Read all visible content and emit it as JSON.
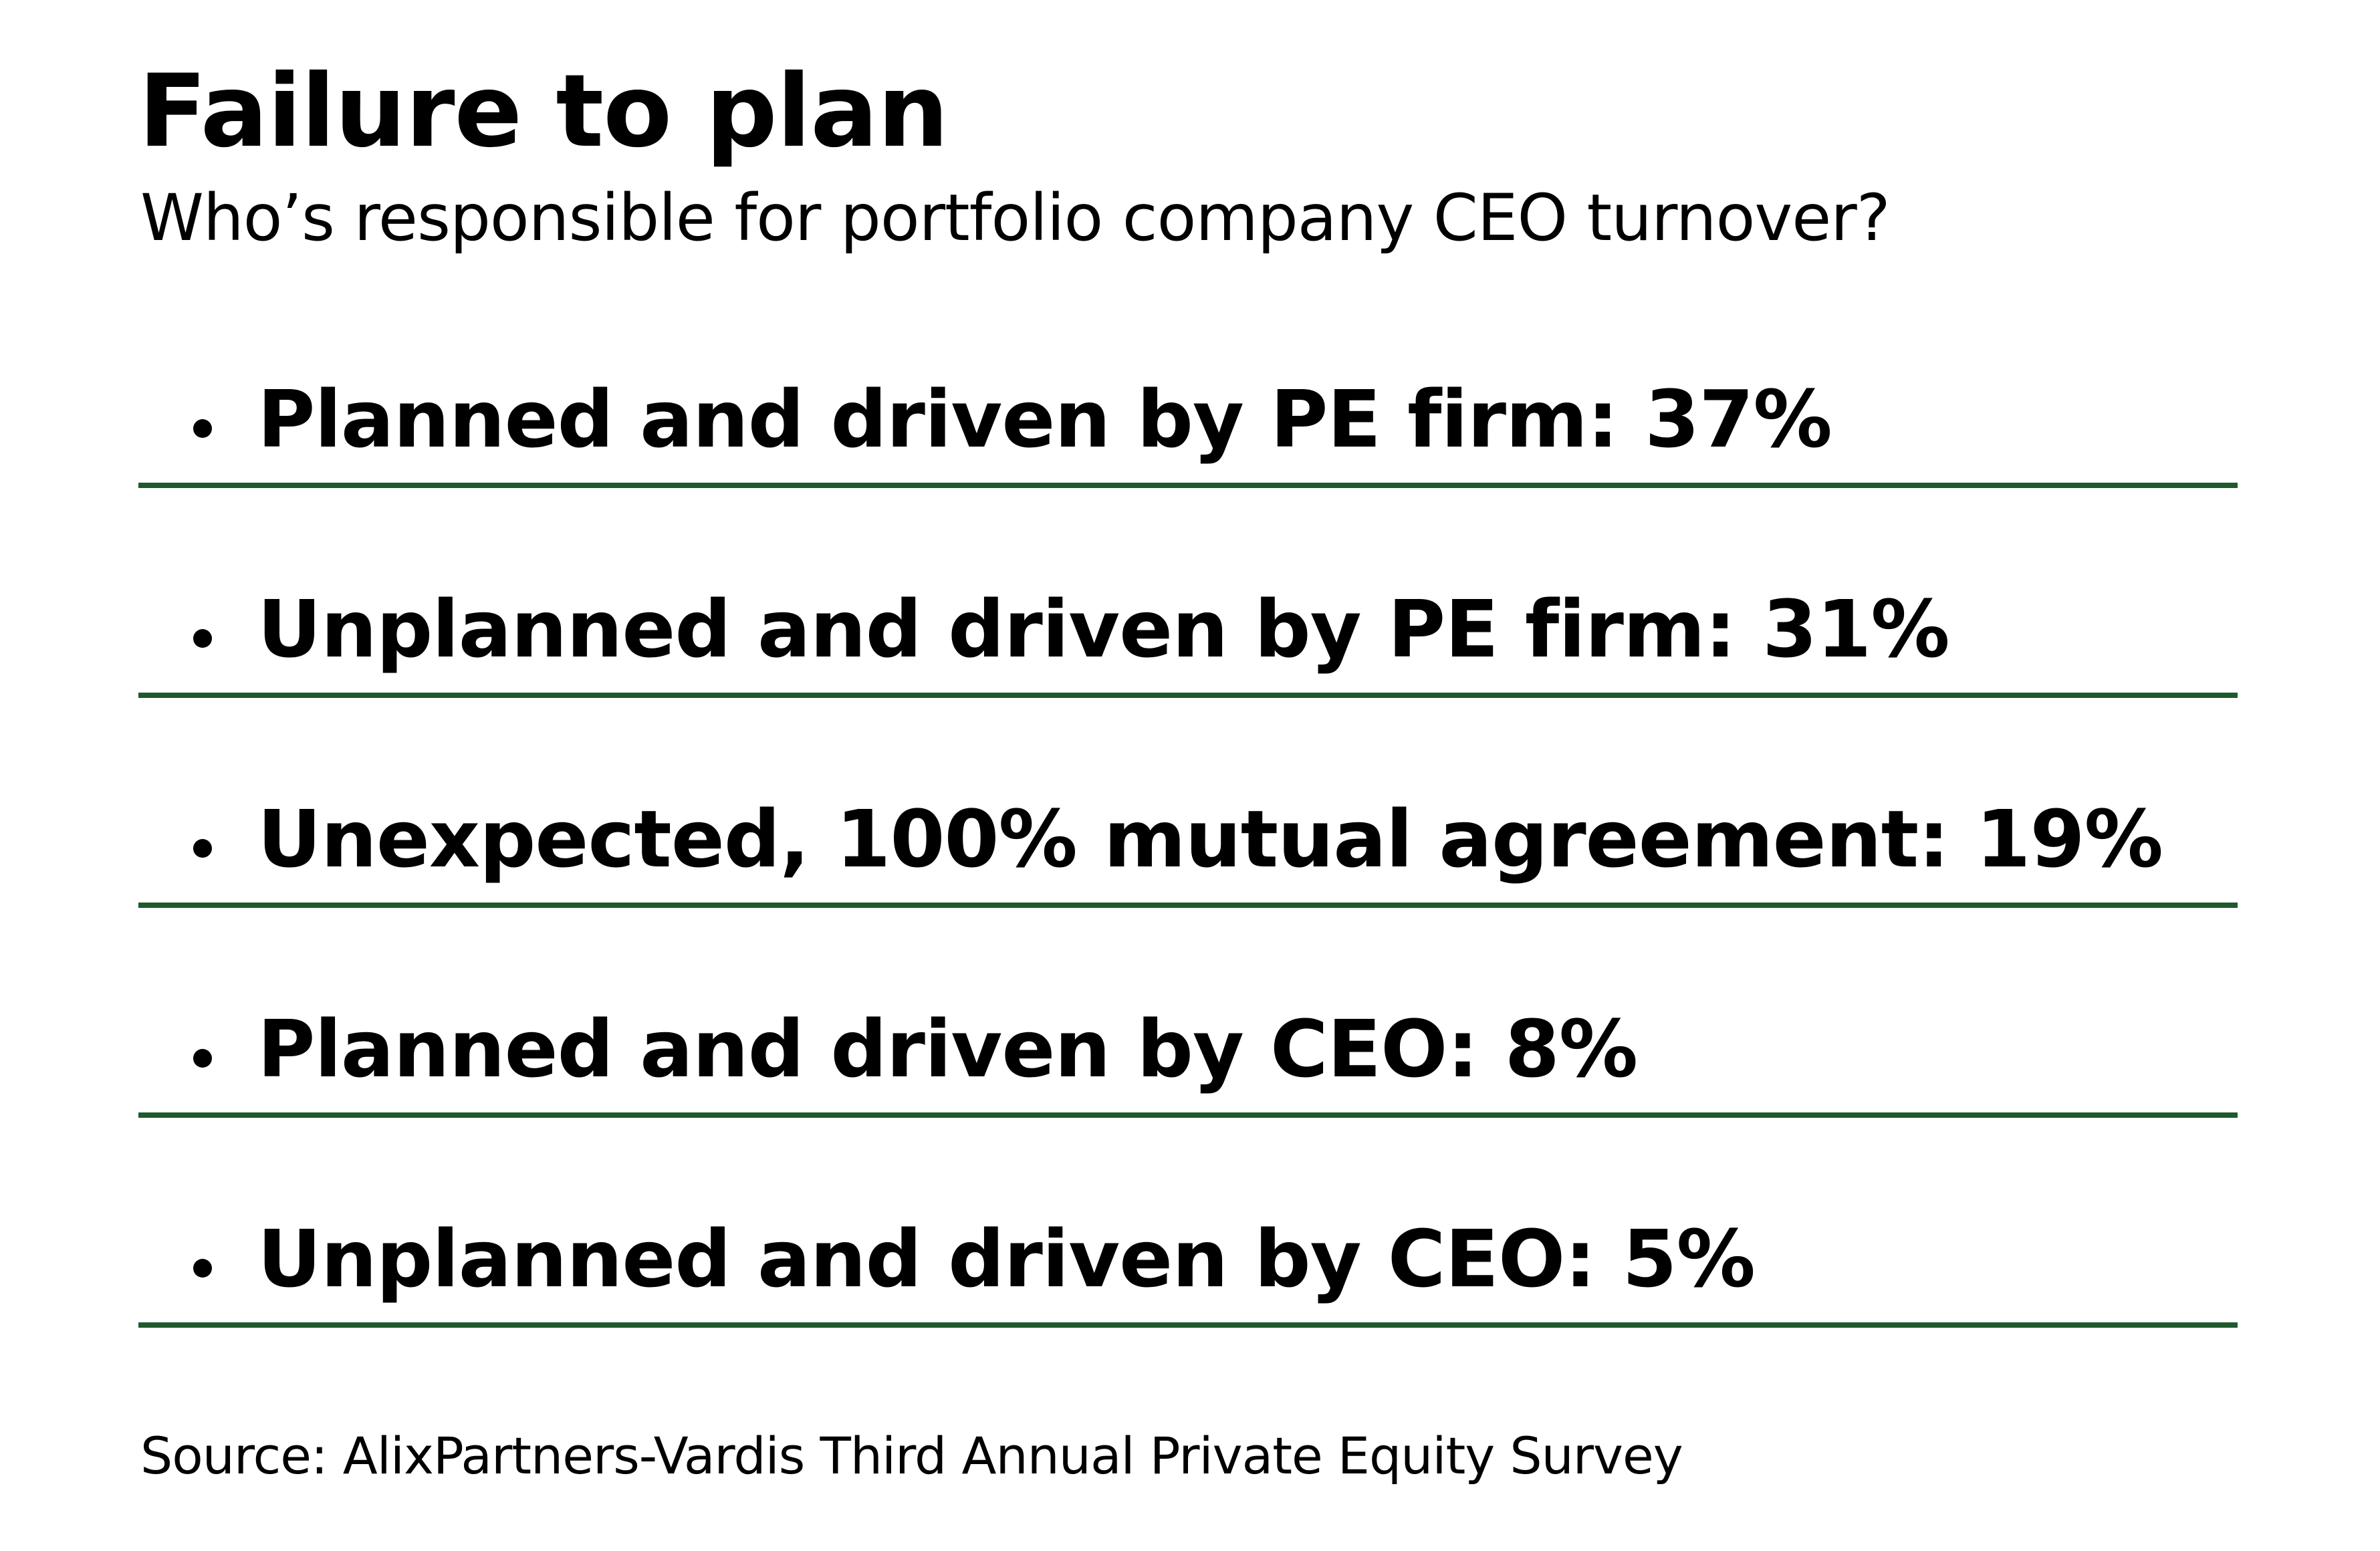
{
  "title": "Failure to plan",
  "subtitle": "Who’s responsible for portfolio company CEO turnover?",
  "items": [
    {
      "label": "Planned and driven by PE firm: 37%"
    },
    {
      "label": "Unplanned and driven by PE firm: 31%"
    },
    {
      "label": "Unexpected, 100% mutual agreement: 19%"
    },
    {
      "label": "Planned and driven by CEO: 8%"
    },
    {
      "label": "Unplanned and driven by CEO: 5%"
    }
  ],
  "source": "Source: AlixPartners-Vardis Third Annual Private Equity Survey",
  "colors": {
    "rule": "#1e5a2c",
    "text": "#000000",
    "background": "#ffffff"
  }
}
